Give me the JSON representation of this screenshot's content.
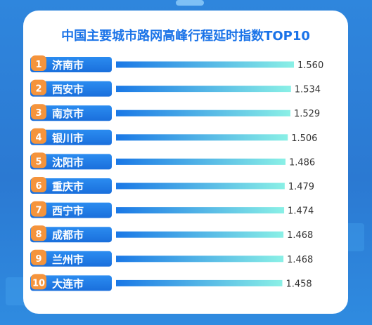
{
  "chart_data": {
    "type": "bar",
    "orientation": "horizontal",
    "title": "中国主要城市路网高峰行程延时指数TOP10",
    "ranks": [
      "1",
      "2",
      "3",
      "4",
      "5",
      "6",
      "7",
      "8",
      "9",
      "10"
    ],
    "categories": [
      "济南市",
      "西安市",
      "南京市",
      "银川市",
      "沈阳市",
      "重庆市",
      "西宁市",
      "成都市",
      "兰州市",
      "大连市"
    ],
    "values": [
      1.56,
      1.534,
      1.529,
      1.506,
      1.486,
      1.479,
      1.474,
      1.468,
      1.468,
      1.458
    ],
    "value_labels": [
      "1.560",
      "1.534",
      "1.529",
      "1.506",
      "1.486",
      "1.479",
      "1.474",
      "1.468",
      "1.468",
      "1.458"
    ],
    "xlim": [
      0,
      1.56
    ],
    "grid": false,
    "legend": "none"
  },
  "colors": {
    "background": "#2b7fd6",
    "card": "#ffffff",
    "title": "#1a73e8",
    "label_pill": "#1f7ee8",
    "rank_badge": "#f5943c",
    "bar_start": "#1a78e6",
    "bar_end": "#8af0e6",
    "value_text": "#333333"
  }
}
